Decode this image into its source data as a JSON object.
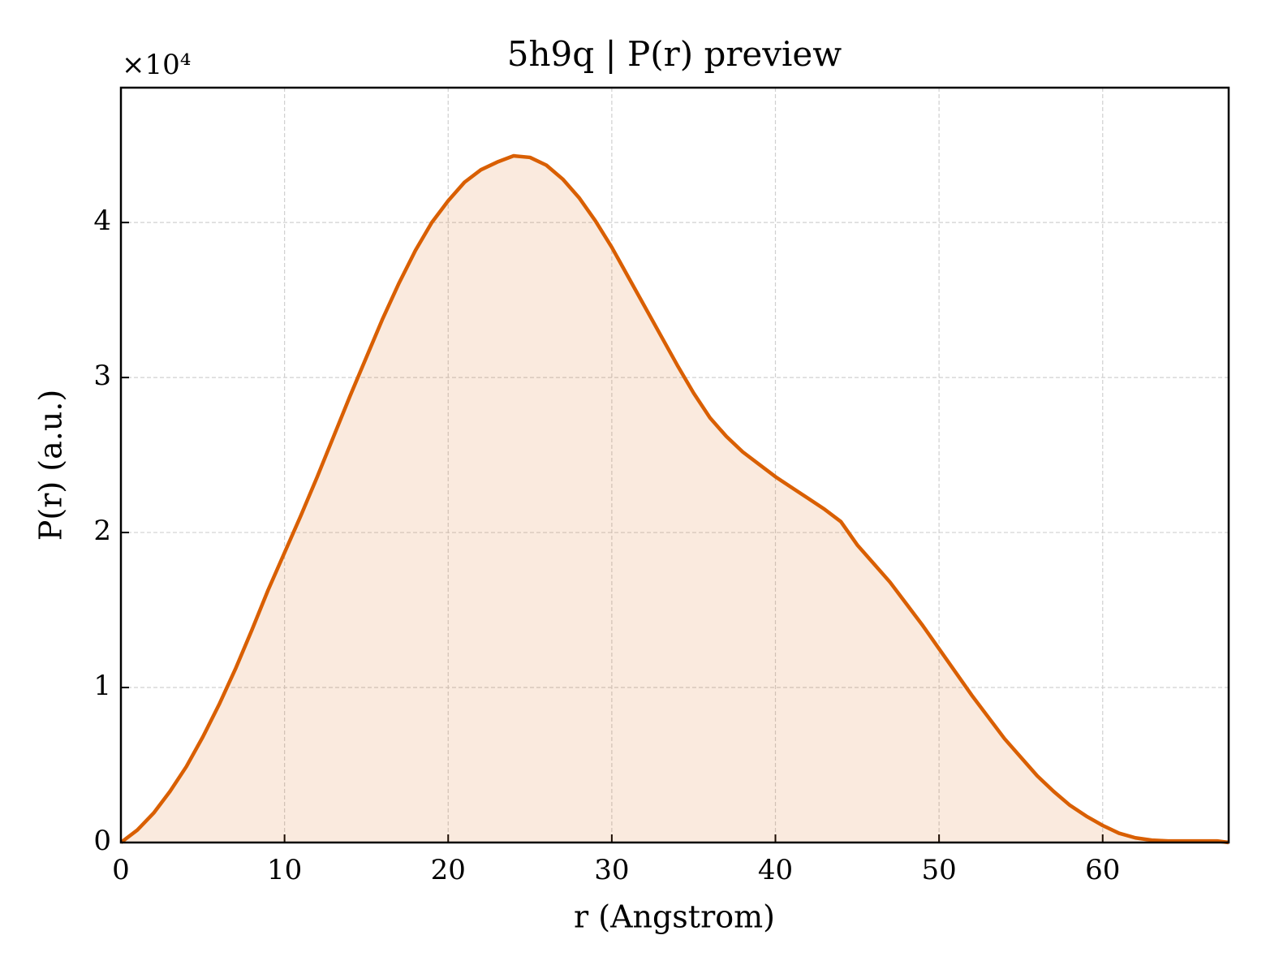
{
  "chart_data": {
    "type": "line",
    "title": "5h9q | P(r) preview",
    "xlabel": "r (Angstrom)",
    "ylabel": "P(r) (a.u.)",
    "y_multiplier": "×10⁴",
    "x": [
      0,
      1,
      2,
      3,
      4,
      5,
      6,
      7,
      8,
      9,
      10,
      11,
      12,
      13,
      14,
      15,
      16,
      17,
      18,
      19,
      20,
      21,
      22,
      23,
      24,
      25,
      26,
      27,
      28,
      29,
      30,
      31,
      32,
      33,
      34,
      35,
      36,
      37,
      38,
      39,
      40,
      41,
      42,
      43,
      44,
      45,
      46,
      47,
      48,
      49,
      50,
      51,
      52,
      53,
      54,
      55,
      56,
      57,
      58,
      59,
      60,
      61,
      62,
      63,
      64,
      65,
      66,
      67,
      67.7
    ],
    "series": [
      {
        "color": "#d95f02",
        "fill": true,
        "values": [
          0,
          0.08,
          0.19,
          0.33,
          0.49,
          0.68,
          0.89,
          1.12,
          1.37,
          1.63,
          1.87,
          2.11,
          2.36,
          2.62,
          2.88,
          3.13,
          3.38,
          3.61,
          3.82,
          4.0,
          4.14,
          4.26,
          4.34,
          4.39,
          4.43,
          4.42,
          4.37,
          4.28,
          4.16,
          4.01,
          3.84,
          3.65,
          3.46,
          3.27,
          3.08,
          2.9,
          2.74,
          2.62,
          2.52,
          2.44,
          2.36,
          2.29,
          2.22,
          2.15,
          2.07,
          1.92,
          1.8,
          1.68,
          1.54,
          1.4,
          1.25,
          1.1,
          0.95,
          0.81,
          0.67,
          0.55,
          0.43,
          0.33,
          0.24,
          0.17,
          0.11,
          0.06,
          0.03,
          0.015,
          0.01,
          0.01,
          0.01,
          0.01,
          0
        ]
      }
    ],
    "xlim": [
      0,
      67.7
    ],
    "ylim": [
      0,
      4.87
    ],
    "xticks": [
      0,
      10,
      20,
      30,
      40,
      50,
      60
    ],
    "yticks": [
      0,
      1,
      2,
      3,
      4
    ],
    "grid": true
  }
}
